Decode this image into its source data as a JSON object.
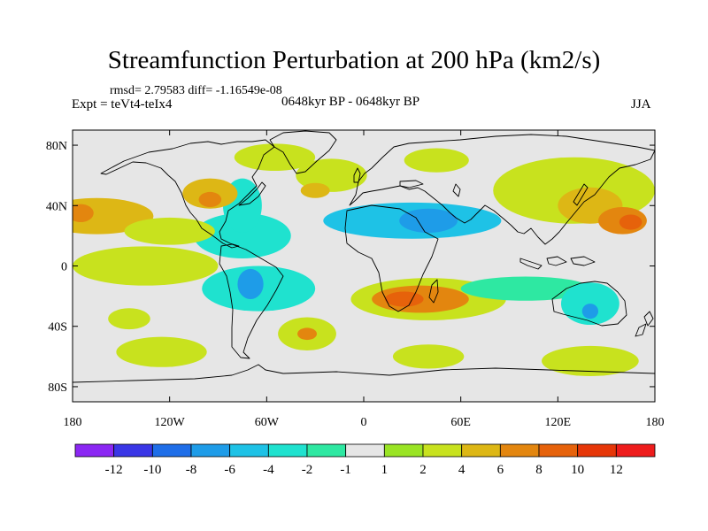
{
  "title": "Streamfunction Perturbation at 200 hPa (km2/s)",
  "stats_text": "rmsd= 2.79583 diff= -1.16549e-08",
  "experiment_text": "Expt = teVt4-teIx4",
  "period_text": "0648kyr BP - 0648kyr BP",
  "season_text": "JJA",
  "map": {
    "projection": "cylindrical equidistant",
    "lon_range": [
      -180,
      180
    ],
    "lat_range": [
      -90,
      90
    ],
    "x_ticks": [
      {
        "lon": -180,
        "label": "180"
      },
      {
        "lon": -120,
        "label": "120W"
      },
      {
        "lon": -60,
        "label": "60W"
      },
      {
        "lon": 0,
        "label": "0"
      },
      {
        "lon": 60,
        "label": "60E"
      },
      {
        "lon": 120,
        "label": "120E"
      },
      {
        "lon": 180,
        "label": "180"
      }
    ],
    "y_ticks": [
      {
        "lat": 80,
        "label": "80N"
      },
      {
        "lat": 40,
        "label": "40N"
      },
      {
        "lat": 0,
        "label": "0"
      },
      {
        "lat": -40,
        "label": "40S"
      },
      {
        "lat": -80,
        "label": "80S"
      }
    ],
    "background_color": "#e6e6e6",
    "coastline_color": "#000000"
  },
  "colorbar": {
    "boundaries": [
      "-12",
      "-10",
      "-8",
      "-6",
      "-4",
      "-2",
      "-1",
      "1",
      "2",
      "4",
      "6",
      "8",
      "10",
      "12"
    ],
    "colors": [
      "#8b27f3",
      "#3a36e6",
      "#1f6ee8",
      "#1e9ce8",
      "#1ec2e6",
      "#1fe2cf",
      "#2ee8a2",
      "#e6e6e6",
      "#9ae424",
      "#c8e21e",
      "#ddb715",
      "#e3860f",
      "#e6620b",
      "#e63608",
      "#ee1c1c"
    ]
  },
  "chart_data": {
    "type": "heatmap",
    "title": "Streamfunction Perturbation at 200 hPa (km2/s)",
    "variable": "Streamfunction Perturbation",
    "level": "200 hPa",
    "units": "km2/s",
    "season": "JJA",
    "experiment": "teVt4-teIx4",
    "period": "0648kyr BP - 0648kyr BP",
    "rmsd": 2.79583,
    "diff": -1.16549e-08,
    "contour_levels": [
      -12,
      -10,
      -8,
      -6,
      -4,
      -2,
      -1,
      1,
      2,
      4,
      6,
      8,
      10,
      12
    ],
    "features": [
      {
        "lon": -165,
        "lat": 33,
        "value": 5,
        "rx": 35,
        "ry": 12
      },
      {
        "lon": -175,
        "lat": 35,
        "value": 6,
        "rx": 8,
        "ry": 6
      },
      {
        "lon": -120,
        "lat": 23,
        "value": 3,
        "rx": 28,
        "ry": 9
      },
      {
        "lon": -135,
        "lat": 0,
        "value": 2,
        "rx": 45,
        "ry": 13
      },
      {
        "lon": -145,
        "lat": -35,
        "value": 3,
        "rx": 13,
        "ry": 7
      },
      {
        "lon": -95,
        "lat": 48,
        "value": 4,
        "rx": 17,
        "ry": 10
      },
      {
        "lon": -95,
        "lat": 44,
        "value": 6,
        "rx": 7,
        "ry": 5
      },
      {
        "lon": -55,
        "lat": 72,
        "value": 2,
        "rx": 25,
        "ry": 9
      },
      {
        "lon": -20,
        "lat": 60,
        "value": 2,
        "rx": 22,
        "ry": 11
      },
      {
        "lon": -30,
        "lat": 50,
        "value": 4,
        "rx": 9,
        "ry": 5
      },
      {
        "lon": 45,
        "lat": 70,
        "value": 2,
        "rx": 20,
        "ry": 8
      },
      {
        "lon": 130,
        "lat": 50,
        "value": 3,
        "rx": 50,
        "ry": 22
      },
      {
        "lon": 140,
        "lat": 40,
        "value": 4,
        "rx": 20,
        "ry": 12
      },
      {
        "lon": 160,
        "lat": 30,
        "value": 6,
        "rx": 15,
        "ry": 9
      },
      {
        "lon": 165,
        "lat": 29,
        "value": 9,
        "rx": 7,
        "ry": 5
      },
      {
        "lon": 40,
        "lat": -22,
        "value": 3,
        "rx": 48,
        "ry": 14
      },
      {
        "lon": 35,
        "lat": -22,
        "value": 6,
        "rx": 30,
        "ry": 9
      },
      {
        "lon": 25,
        "lat": -22,
        "value": 8,
        "rx": 12,
        "ry": 5
      },
      {
        "lon": -35,
        "lat": -45,
        "value": 3,
        "rx": 18,
        "ry": 11
      },
      {
        "lon": -35,
        "lat": -45,
        "value": 6,
        "rx": 6,
        "ry": 4
      },
      {
        "lon": 40,
        "lat": -60,
        "value": 2,
        "rx": 22,
        "ry": 8
      },
      {
        "lon": -125,
        "lat": -57,
        "value": 2,
        "rx": 28,
        "ry": 10
      },
      {
        "lon": 140,
        "lat": -63,
        "value": 2,
        "rx": 30,
        "ry": 10
      },
      {
        "lon": -75,
        "lat": 20,
        "value": -3,
        "rx": 30,
        "ry": 15
      },
      {
        "lon": -75,
        "lat": 40,
        "value": -3,
        "rx": 12,
        "ry": 18
      },
      {
        "lon": -65,
        "lat": -15,
        "value": -4,
        "rx": 35,
        "ry": 15
      },
      {
        "lon": -70,
        "lat": -12,
        "value": -7,
        "rx": 8,
        "ry": 10
      },
      {
        "lon": 30,
        "lat": 30,
        "value": -5,
        "rx": 55,
        "ry": 12
      },
      {
        "lon": 40,
        "lat": 30,
        "value": -7,
        "rx": 18,
        "ry": 8
      },
      {
        "lon": 100,
        "lat": -15,
        "value": -2,
        "rx": 40,
        "ry": 8
      },
      {
        "lon": 140,
        "lat": -25,
        "value": -4,
        "rx": 18,
        "ry": 14
      },
      {
        "lon": 140,
        "lat": -30,
        "value": -7,
        "rx": 5,
        "ry": 5
      }
    ]
  }
}
